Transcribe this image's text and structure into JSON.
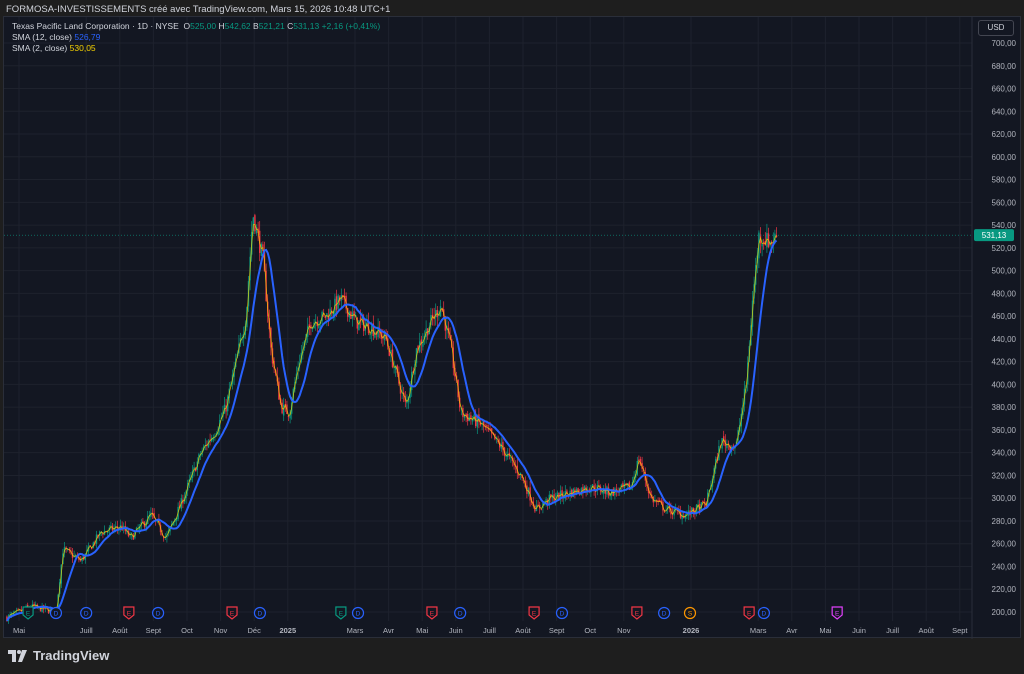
{
  "header": {
    "caption": "FORMOSA-INVESTISSEMENTS créé avec TradingView.com, Mars 15, 2026 10:48 UTC+1"
  },
  "legend": {
    "symbol": "Texas Pacific Land Corporation · 1D · NYSE",
    "o_label": "O",
    "o": "525,00",
    "h_label": "H",
    "h": "542,62",
    "b_label": "B",
    "b": "521,21",
    "c_label": "C",
    "c": "531,13",
    "change": "+2,16 (+0,41%)",
    "sma12_label": "SMA (12, close)",
    "sma12": "526,79",
    "sma2_label": "SMA (2, close)",
    "sma2": "530,05"
  },
  "currency": "USD",
  "footer": {
    "brand": "TradingView"
  },
  "colors": {
    "up": "#089981",
    "down": "#f23645",
    "sma12": "#2962ff",
    "sma2": "#f7d300",
    "bg": "#131722"
  },
  "chart_data": {
    "type": "candlestick",
    "title": "Texas Pacific Land Corporation · 1D · NYSE",
    "x_unit": "months since May 2024",
    "ylim": [
      190,
      712
    ],
    "y_ticks": [
      200,
      220,
      240,
      260,
      280,
      300,
      320,
      340,
      360,
      380,
      400,
      420,
      440,
      460,
      480,
      500,
      520,
      540,
      560,
      580,
      600,
      620,
      640,
      660,
      680,
      700
    ],
    "y_tick_labels": [
      "200,00",
      "220,00",
      "240,00",
      "260,00",
      "280,00",
      "300,00",
      "320,00",
      "340,00",
      "360,00",
      "380,00",
      "400,00",
      "420,00",
      "440,00",
      "460,00",
      "480,00",
      "500,00",
      "520,00",
      "540,00",
      "560,00",
      "580,00",
      "600,00",
      "620,00",
      "640,00",
      "660,00",
      "680,00",
      "700,00"
    ],
    "last_price": 531.13,
    "last_price_label": "531,13",
    "x_ticks": [
      {
        "t": 0,
        "label": "Mai"
      },
      {
        "t": 2,
        "label": "Juill"
      },
      {
        "t": 3,
        "label": "Août"
      },
      {
        "t": 4,
        "label": "Sept"
      },
      {
        "t": 5,
        "label": "Oct"
      },
      {
        "t": 6,
        "label": "Nov"
      },
      {
        "t": 7,
        "label": "Déc"
      },
      {
        "t": 8,
        "label": "2025",
        "bold": true
      },
      {
        "t": 10,
        "label": "Mars"
      },
      {
        "t": 11,
        "label": "Avr"
      },
      {
        "t": 12,
        "label": "Mai"
      },
      {
        "t": 13,
        "label": "Juin"
      },
      {
        "t": 14,
        "label": "Juill"
      },
      {
        "t": 15,
        "label": "Août"
      },
      {
        "t": 16,
        "label": "Sept"
      },
      {
        "t": 17,
        "label": "Oct"
      },
      {
        "t": 18,
        "label": "Nov"
      },
      {
        "t": 20,
        "label": "2026",
        "bold": true
      },
      {
        "t": 22,
        "label": "Mars"
      },
      {
        "t": 23,
        "label": "Avr"
      },
      {
        "t": 24,
        "label": "Mai"
      },
      {
        "t": 25,
        "label": "Juin"
      },
      {
        "t": 26,
        "label": "Juill"
      },
      {
        "t": 27,
        "label": "Août"
      },
      {
        "t": 28,
        "label": "Sept"
      }
    ],
    "close_keypoints": [
      [
        -0.36,
        195
      ],
      [
        0.36,
        205
      ],
      [
        1.1,
        200
      ],
      [
        1.31,
        255
      ],
      [
        1.85,
        245
      ],
      [
        2.44,
        270
      ],
      [
        3.04,
        275
      ],
      [
        3.33,
        265
      ],
      [
        3.93,
        285
      ],
      [
        4.38,
        265
      ],
      [
        4.82,
        295
      ],
      [
        5.42,
        340
      ],
      [
        5.86,
        360
      ],
      [
        6.16,
        380
      ],
      [
        6.46,
        420
      ],
      [
        6.76,
        460
      ],
      [
        6.96,
        550
      ],
      [
        7.26,
        510
      ],
      [
        7.5,
        430
      ],
      [
        7.8,
        380
      ],
      [
        8.04,
        375
      ],
      [
        8.33,
        420
      ],
      [
        8.69,
        455
      ],
      [
        9.14,
        460
      ],
      [
        9.58,
        475
      ],
      [
        10.03,
        455
      ],
      [
        10.48,
        450
      ],
      [
        10.92,
        440
      ],
      [
        11.22,
        410
      ],
      [
        11.52,
        380
      ],
      [
        11.82,
        430
      ],
      [
        12.26,
        455
      ],
      [
        12.56,
        470
      ],
      [
        12.86,
        430
      ],
      [
        13.15,
        375
      ],
      [
        13.75,
        365
      ],
      [
        14.35,
        345
      ],
      [
        14.94,
        320
      ],
      [
        15.39,
        290
      ],
      [
        15.83,
        300
      ],
      [
        16.43,
        305
      ],
      [
        17.02,
        310
      ],
      [
        17.62,
        305
      ],
      [
        18.21,
        310
      ],
      [
        18.45,
        335
      ],
      [
        18.81,
        300
      ],
      [
        19.26,
        290
      ],
      [
        19.85,
        285
      ],
      [
        20.45,
        295
      ],
      [
        20.89,
        350
      ],
      [
        21.34,
        345
      ],
      [
        21.64,
        400
      ],
      [
        21.85,
        480
      ],
      [
        22.02,
        530
      ],
      [
        22.38,
        525
      ],
      [
        22.56,
        531
      ]
    ],
    "events": [
      {
        "t": 0.27,
        "type": "E",
        "color": "#089981"
      },
      {
        "t": 1.1,
        "type": "D",
        "color": "#2962ff"
      },
      {
        "t": 2.0,
        "type": "D",
        "color": "#2962ff"
      },
      {
        "t": 3.27,
        "type": "E",
        "color": "#f23645"
      },
      {
        "t": 4.14,
        "type": "D",
        "color": "#2962ff"
      },
      {
        "t": 6.34,
        "type": "E",
        "color": "#f23645"
      },
      {
        "t": 7.17,
        "type": "D",
        "color": "#2962ff"
      },
      {
        "t": 9.58,
        "type": "E",
        "color": "#089981"
      },
      {
        "t": 10.09,
        "type": "D",
        "color": "#2962ff"
      },
      {
        "t": 12.29,
        "type": "E",
        "color": "#f23645"
      },
      {
        "t": 13.13,
        "type": "D",
        "color": "#2962ff"
      },
      {
        "t": 15.33,
        "type": "E",
        "color": "#f23645"
      },
      {
        "t": 16.16,
        "type": "D",
        "color": "#2962ff"
      },
      {
        "t": 18.39,
        "type": "E",
        "color": "#f23645"
      },
      {
        "t": 19.2,
        "type": "D",
        "color": "#2962ff"
      },
      {
        "t": 19.97,
        "type": "S",
        "color": "#ff9800"
      },
      {
        "t": 21.73,
        "type": "E",
        "color": "#f23645"
      },
      {
        "t": 22.17,
        "type": "D",
        "color": "#2962ff"
      },
      {
        "t": 24.35,
        "type": "E",
        "color": "#e040fb"
      }
    ]
  }
}
